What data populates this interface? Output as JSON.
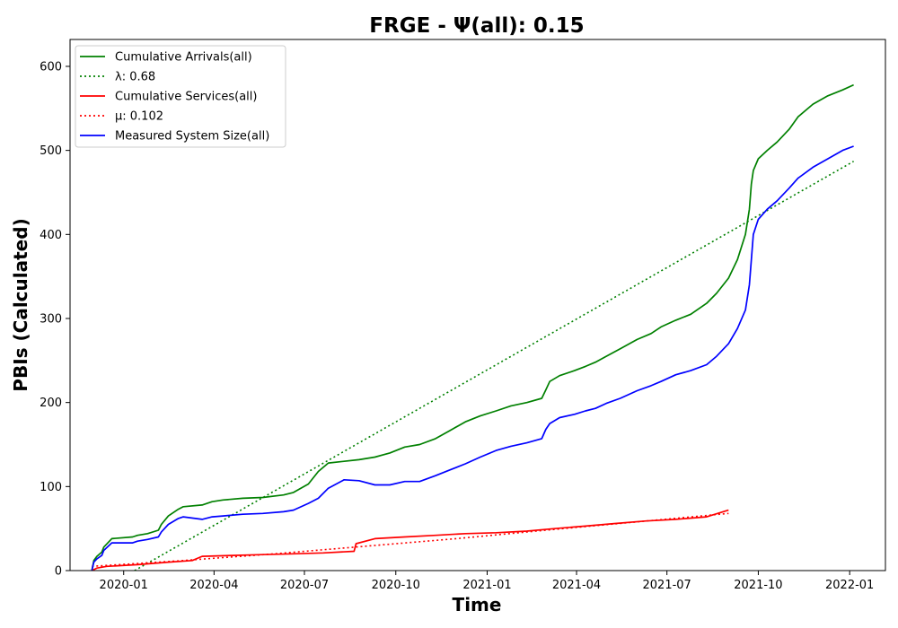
{
  "chart_data": {
    "type": "line",
    "title": "FRGE -  Ψ(all): 0.15",
    "xlabel": "Time",
    "ylabel": "PBIs (Calculated)",
    "xlim": [
      "2019-11-08",
      "2022-02-06"
    ],
    "ylim": [
      0,
      632
    ],
    "x_ticks": [
      "2020-01-01",
      "2020-04-01",
      "2020-07-01",
      "2020-10-01",
      "2021-01-01",
      "2021-04-01",
      "2021-07-01",
      "2021-10-01",
      "2022-01-01"
    ],
    "x_tick_labels": [
      "2020-01",
      "2020-04",
      "2020-07",
      "2020-10",
      "2021-01",
      "2021-04",
      "2021-07",
      "2021-10",
      "2022-01"
    ],
    "y_ticks": [
      0,
      100,
      200,
      300,
      400,
      500,
      600
    ],
    "y_tick_labels": [
      "0",
      "100",
      "200",
      "300",
      "400",
      "500",
      "600"
    ],
    "grid": false,
    "legend_position": "top-left",
    "series": [
      {
        "name": "Cumulative Arrivals(all)",
        "style": "solid",
        "color": "#008000",
        "x": [
          "2019-11-30",
          "2019-12-02",
          "2019-12-05",
          "2019-12-10",
          "2019-12-12",
          "2019-12-20",
          "2020-01-10",
          "2020-01-15",
          "2020-01-25",
          "2020-02-05",
          "2020-02-08",
          "2020-02-15",
          "2020-02-25",
          "2020-03-01",
          "2020-03-20",
          "2020-03-30",
          "2020-04-10",
          "2020-04-30",
          "2020-05-20",
          "2020-06-10",
          "2020-06-20",
          "2020-07-05",
          "2020-07-15",
          "2020-07-25",
          "2020-08-10",
          "2020-08-25",
          "2020-09-10",
          "2020-09-25",
          "2020-10-10",
          "2020-10-25",
          "2020-11-10",
          "2020-11-25",
          "2020-12-10",
          "2020-12-25",
          "2021-01-10",
          "2021-01-25",
          "2021-02-10",
          "2021-02-25",
          "2021-03-01",
          "2021-03-05",
          "2021-03-15",
          "2021-03-30",
          "2021-04-10",
          "2021-04-20",
          "2021-05-01",
          "2021-05-15",
          "2021-06-01",
          "2021-06-15",
          "2021-06-25",
          "2021-07-10",
          "2021-07-25",
          "2021-08-10",
          "2021-08-20",
          "2021-09-01",
          "2021-09-10",
          "2021-09-18",
          "2021-09-22",
          "2021-09-24",
          "2021-09-26",
          "2021-10-01",
          "2021-10-10",
          "2021-10-20",
          "2021-11-01",
          "2021-11-10",
          "2021-11-25",
          "2021-12-10",
          "2021-12-25",
          "2022-01-05"
        ],
        "y": [
          0,
          12,
          17,
          22,
          28,
          38,
          40,
          42,
          44,
          48,
          55,
          65,
          73,
          76,
          78,
          82,
          84,
          86,
          87,
          90,
          93,
          103,
          118,
          128,
          130,
          132,
          135,
          140,
          147,
          150,
          157,
          167,
          177,
          184,
          190,
          196,
          200,
          205,
          215,
          225,
          232,
          238,
          243,
          248,
          255,
          264,
          275,
          282,
          290,
          298,
          305,
          318,
          330,
          348,
          370,
          400,
          430,
          460,
          476,
          490,
          500,
          510,
          525,
          540,
          555,
          565,
          572,
          578
        ]
      },
      {
        "name": "λ: 0.68",
        "style": "dotted",
        "color": "#008000",
        "x": [
          "2020-01-12",
          "2022-01-05"
        ],
        "y": [
          0,
          487
        ]
      },
      {
        "name": "Cumulative Services(all)",
        "style": "solid",
        "color": "#ff0000",
        "x": [
          "2019-11-30",
          "2019-12-05",
          "2019-12-15",
          "2020-01-15",
          "2020-02-15",
          "2020-03-10",
          "2020-03-20",
          "2020-04-20",
          "2020-05-20",
          "2020-06-20",
          "2020-07-20",
          "2020-08-20",
          "2020-08-22",
          "2020-09-10",
          "2020-10-10",
          "2020-11-10",
          "2020-12-10",
          "2021-01-10",
          "2021-02-10",
          "2021-03-10",
          "2021-04-10",
          "2021-05-10",
          "2021-06-10",
          "2021-07-10",
          "2021-08-10",
          "2021-09-01"
        ],
        "y": [
          0,
          3,
          5,
          7,
          10,
          12,
          17,
          18,
          19,
          20,
          21,
          23,
          32,
          38,
          40,
          42,
          44,
          45,
          47,
          50,
          53,
          56,
          59,
          61,
          64,
          72
        ]
      },
      {
        "name": "μ: 0.102",
        "style": "dotted",
        "color": "#ff0000",
        "x": [
          "2019-11-30",
          "2020-03-01",
          "2020-06-01",
          "2020-09-01",
          "2020-12-01",
          "2021-03-01",
          "2021-06-01",
          "2021-09-01"
        ],
        "y": [
          5,
          12,
          20,
          29,
          38,
          48,
          58,
          68
        ]
      },
      {
        "name": "Measured System Size(all)",
        "style": "solid",
        "color": "#0000ff",
        "x": [
          "2019-11-30",
          "2019-12-02",
          "2019-12-05",
          "2019-12-10",
          "2019-12-12",
          "2019-12-20",
          "2020-01-10",
          "2020-01-15",
          "2020-01-25",
          "2020-02-05",
          "2020-02-08",
          "2020-02-15",
          "2020-02-25",
          "2020-03-01",
          "2020-03-20",
          "2020-03-30",
          "2020-04-10",
          "2020-04-30",
          "2020-05-20",
          "2020-06-10",
          "2020-06-20",
          "2020-07-05",
          "2020-07-15",
          "2020-07-25",
          "2020-08-10",
          "2020-08-25",
          "2020-09-10",
          "2020-09-25",
          "2020-10-10",
          "2020-10-25",
          "2020-11-10",
          "2020-11-25",
          "2020-12-10",
          "2020-12-25",
          "2021-01-10",
          "2021-01-25",
          "2021-02-10",
          "2021-02-25",
          "2021-03-01",
          "2021-03-05",
          "2021-03-15",
          "2021-03-30",
          "2021-04-10",
          "2021-04-20",
          "2021-05-01",
          "2021-05-15",
          "2021-06-01",
          "2021-06-15",
          "2021-06-25",
          "2021-07-10",
          "2021-07-25",
          "2021-08-10",
          "2021-08-20",
          "2021-09-01",
          "2021-09-10",
          "2021-09-18",
          "2021-09-22",
          "2021-09-24",
          "2021-09-26",
          "2021-10-01",
          "2021-10-10",
          "2021-10-20",
          "2021-11-01",
          "2021-11-10",
          "2021-11-25",
          "2021-12-10",
          "2021-12-25",
          "2022-01-05"
        ],
        "y": [
          0,
          10,
          14,
          18,
          24,
          33,
          33,
          35,
          37,
          40,
          46,
          55,
          62,
          64,
          61,
          64,
          65,
          67,
          68,
          70,
          72,
          80,
          86,
          98,
          108,
          107,
          102,
          102,
          106,
          106,
          113,
          120,
          127,
          135,
          143,
          148,
          152,
          157,
          168,
          175,
          182,
          186,
          190,
          193,
          199,
          205,
          214,
          220,
          225,
          233,
          238,
          245,
          255,
          270,
          288,
          310,
          340,
          370,
          400,
          418,
          430,
          440,
          455,
          467,
          480,
          490,
          500,
          505
        ]
      }
    ]
  }
}
